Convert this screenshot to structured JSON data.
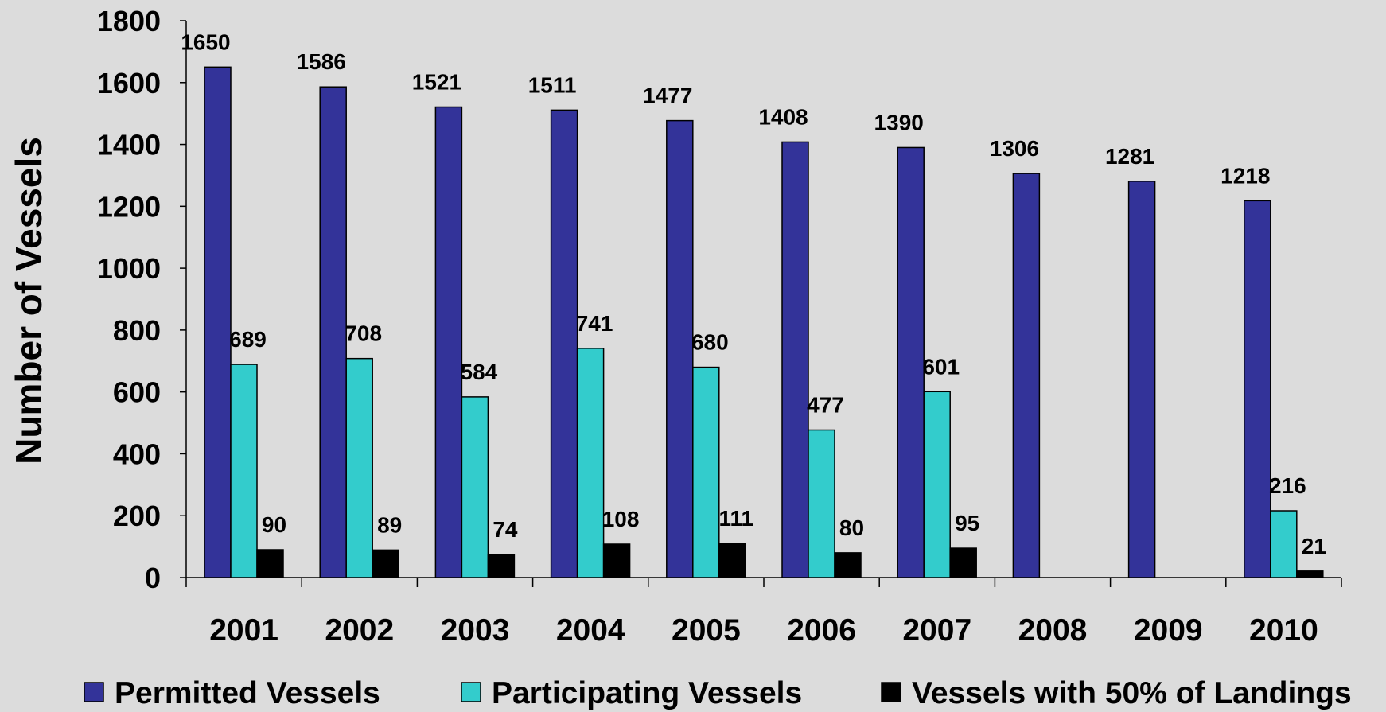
{
  "colors": {
    "background": "#dcdcdc",
    "permitted": "#333399",
    "participating": "#33cccc",
    "landings": "#000000"
  },
  "chart_data": {
    "type": "bar",
    "title": "",
    "xlabel": "",
    "ylabel": "Number of Vessels",
    "ylim": [
      0,
      1800
    ],
    "yticks": [
      0,
      200,
      400,
      600,
      800,
      1000,
      1200,
      1400,
      1600,
      1800
    ],
    "grid": false,
    "legend_position": "bottom",
    "categories": [
      "2001",
      "2002",
      "2003",
      "2004",
      "2005",
      "2006",
      "2007",
      "2008",
      "2009",
      "2010"
    ],
    "series": [
      {
        "name": "Permitted Vessels",
        "color": "#333399",
        "values": [
          1650,
          1586,
          1521,
          1511,
          1477,
          1408,
          1390,
          1306,
          1281,
          1218
        ]
      },
      {
        "name": "Participating Vessels",
        "color": "#33cccc",
        "values": [
          689,
          708,
          584,
          741,
          680,
          477,
          601,
          null,
          null,
          216
        ]
      },
      {
        "name": "Vessels with 50% of Landings",
        "color": "#000000",
        "values": [
          90,
          89,
          74,
          108,
          111,
          80,
          95,
          null,
          null,
          21
        ]
      }
    ]
  }
}
